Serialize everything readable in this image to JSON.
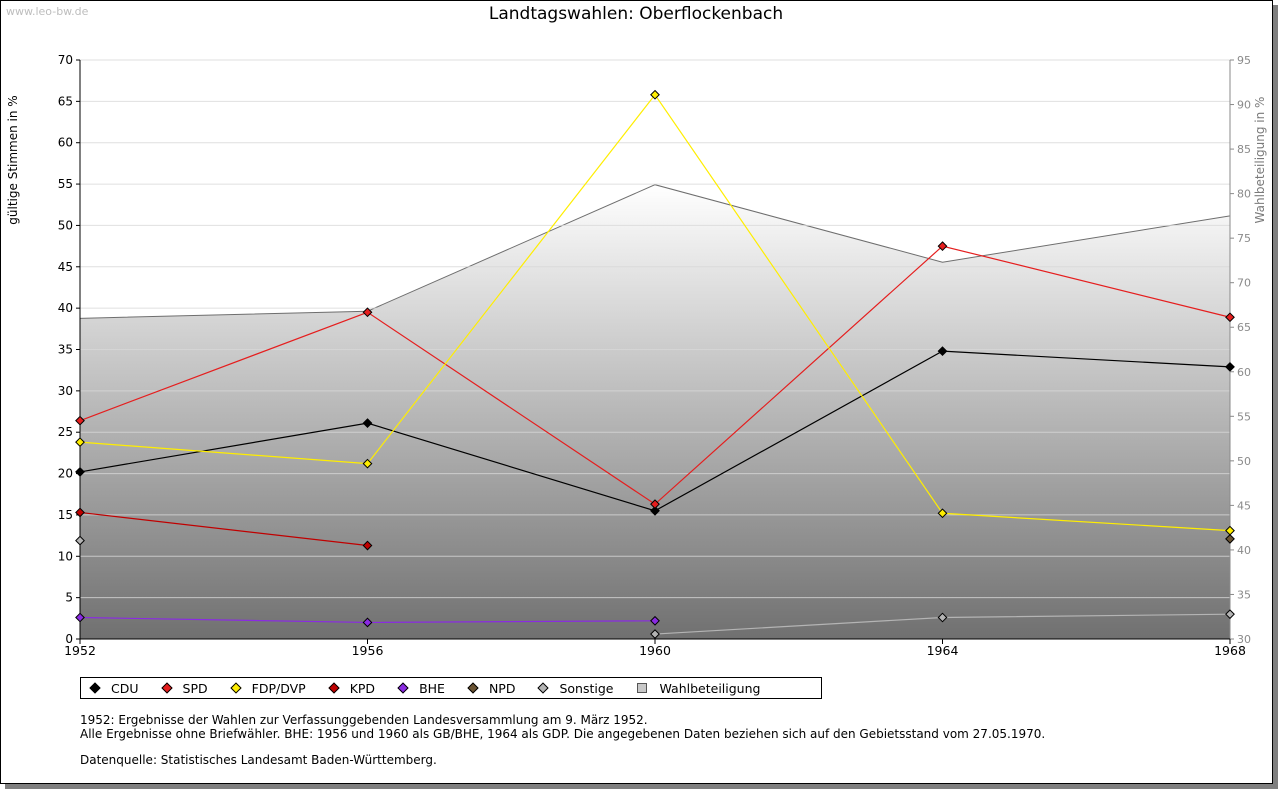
{
  "watermark": "www.leo-bw.de",
  "title": "Landtagswahlen: Oberflockenbach",
  "notes": {
    "line1": "1952: Ergebnisse der Wahlen zur Verfassunggebenden Landesversammlung am 9. März 1952.",
    "line2": "Alle Ergebnisse ohne Briefwähler. BHE: 1956 und 1960 als GB/BHE, 1964 als GDP. Die angegebenen Daten beziehen sich auf den Gebietsstand vom 27.05.1970.",
    "source": "Datenquelle: Statistisches Landesamt Baden-Württemberg."
  },
  "chart_data": {
    "type": "line",
    "title": "Landtagswahlen: Oberflockenbach",
    "ylabel": "gültige Stimmen in %",
    "y2label": "Wahlbeteiligung in %",
    "ylim": [
      0,
      70
    ],
    "y2lim": [
      30,
      95
    ],
    "x": [
      "1952",
      "1956",
      "1960",
      "1964",
      "1968"
    ],
    "yticks": [
      "0",
      "5",
      "10",
      "15",
      "20",
      "25",
      "30",
      "35",
      "40",
      "45",
      "50",
      "55",
      "60",
      "65",
      "70"
    ],
    "y2ticks": [
      "30",
      "35",
      "40",
      "45",
      "50",
      "55",
      "60",
      "65",
      "70",
      "75",
      "80",
      "85",
      "90",
      "95"
    ],
    "legend_position": "bottom",
    "series": [
      {
        "name": "CDU",
        "color": "#000000",
        "values": [
          20.2,
          26.1,
          15.5,
          34.8,
          32.9
        ]
      },
      {
        "name": "SPD",
        "color": "#e51e1e",
        "values": [
          26.4,
          39.5,
          16.3,
          47.5,
          38.9
        ]
      },
      {
        "name": "FDP/DVP",
        "color": "#ffee00",
        "values": [
          23.8,
          21.2,
          65.8,
          15.2,
          13.1
        ]
      },
      {
        "name": "KPD",
        "color": "#c00000",
        "values": [
          15.3,
          11.3,
          null,
          null,
          null
        ]
      },
      {
        "name": "BHE",
        "color": "#8a2be2",
        "values": [
          2.6,
          2.0,
          2.2,
          null,
          null
        ]
      },
      {
        "name": "NPD",
        "color": "#6b5433",
        "values": [
          null,
          null,
          null,
          null,
          12.1
        ]
      },
      {
        "name": "Sonstige",
        "color": "#b4b4b4",
        "values": [
          11.9,
          null,
          0.6,
          2.6,
          3.0
        ]
      }
    ],
    "turnout": {
      "name": "Wahlbeteiligung",
      "values": [
        66.0,
        66.8,
        81.0,
        72.3,
        77.5
      ]
    }
  },
  "legend": [
    {
      "label": "CDU",
      "color": "#000000"
    },
    {
      "label": "SPD",
      "color": "#e51e1e"
    },
    {
      "label": "FDP/DVP",
      "color": "#ffee00"
    },
    {
      "label": "KPD",
      "color": "#c00000"
    },
    {
      "label": "BHE",
      "color": "#8a2be2"
    },
    {
      "label": "NPD",
      "color": "#6b5433"
    },
    {
      "label": "Sonstige",
      "color": "#b4b4b4"
    },
    {
      "label": "Wahlbeteiligung",
      "color": "#c8c8c8"
    }
  ]
}
